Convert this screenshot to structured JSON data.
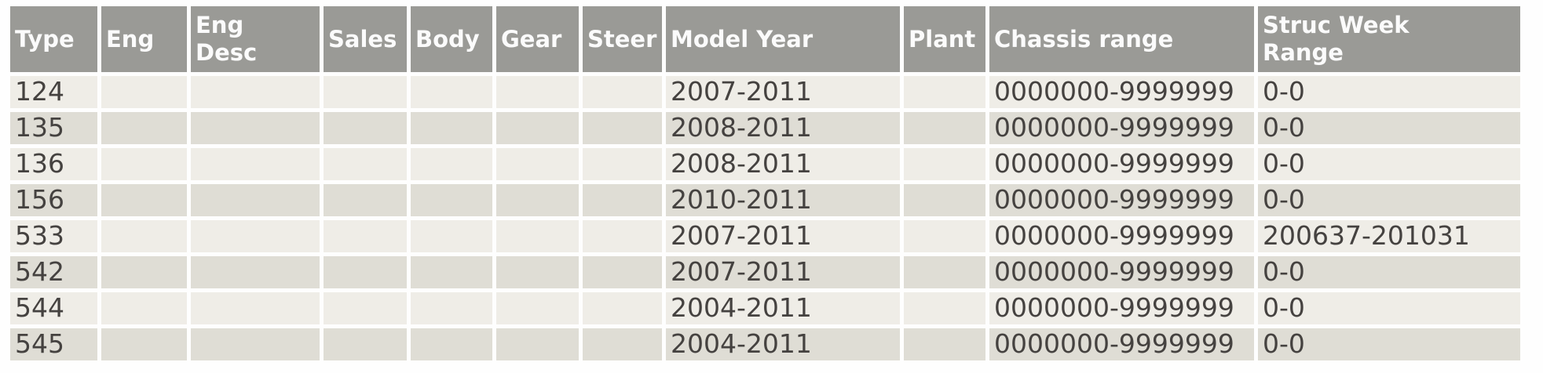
{
  "colors": {
    "page_bg": "#fefefe",
    "header_bg": "#9a9a96",
    "header_text": "#fbfbfb",
    "row_odd_bg": "#efede7",
    "row_even_bg": "#dfddd5",
    "cell_text": "#454240"
  },
  "table": {
    "columns": [
      {
        "key": "type",
        "label": "Type"
      },
      {
        "key": "eng",
        "label": "Eng"
      },
      {
        "key": "eng_desc",
        "label": "Eng Desc"
      },
      {
        "key": "sales",
        "label": "Sales"
      },
      {
        "key": "body",
        "label": "Body"
      },
      {
        "key": "gear",
        "label": "Gear"
      },
      {
        "key": "steer",
        "label": "Steer"
      },
      {
        "key": "model_year",
        "label": "Model Year"
      },
      {
        "key": "plant",
        "label": "Plant"
      },
      {
        "key": "chassis_range",
        "label": "Chassis range"
      },
      {
        "key": "struc_week_range",
        "label": "Struc Week Range"
      }
    ],
    "rows": [
      {
        "type": "124",
        "eng": "",
        "eng_desc": "",
        "sales": "",
        "body": "",
        "gear": "",
        "steer": "",
        "model_year": "2007-2011",
        "plant": "",
        "chassis_range": "0000000-9999999",
        "struc_week_range": "0-0"
      },
      {
        "type": "135",
        "eng": "",
        "eng_desc": "",
        "sales": "",
        "body": "",
        "gear": "",
        "steer": "",
        "model_year": "2008-2011",
        "plant": "",
        "chassis_range": "0000000-9999999",
        "struc_week_range": "0-0"
      },
      {
        "type": "136",
        "eng": "",
        "eng_desc": "",
        "sales": "",
        "body": "",
        "gear": "",
        "steer": "",
        "model_year": "2008-2011",
        "plant": "",
        "chassis_range": "0000000-9999999",
        "struc_week_range": "0-0"
      },
      {
        "type": "156",
        "eng": "",
        "eng_desc": "",
        "sales": "",
        "body": "",
        "gear": "",
        "steer": "",
        "model_year": "2010-2011",
        "plant": "",
        "chassis_range": "0000000-9999999",
        "struc_week_range": "0-0"
      },
      {
        "type": "533",
        "eng": "",
        "eng_desc": "",
        "sales": "",
        "body": "",
        "gear": "",
        "steer": "",
        "model_year": "2007-2011",
        "plant": "",
        "chassis_range": "0000000-9999999",
        "struc_week_range": "200637-201031"
      },
      {
        "type": "542",
        "eng": "",
        "eng_desc": "",
        "sales": "",
        "body": "",
        "gear": "",
        "steer": "",
        "model_year": "2007-2011",
        "plant": "",
        "chassis_range": "0000000-9999999",
        "struc_week_range": "0-0"
      },
      {
        "type": "544",
        "eng": "",
        "eng_desc": "",
        "sales": "",
        "body": "",
        "gear": "",
        "steer": "",
        "model_year": "2004-2011",
        "plant": "",
        "chassis_range": "0000000-9999999",
        "struc_week_range": "0-0"
      },
      {
        "type": "545",
        "eng": "",
        "eng_desc": "",
        "sales": "",
        "body": "",
        "gear": "",
        "steer": "",
        "model_year": "2004-2011",
        "plant": "",
        "chassis_range": "0000000-9999999",
        "struc_week_range": "0-0"
      }
    ]
  }
}
